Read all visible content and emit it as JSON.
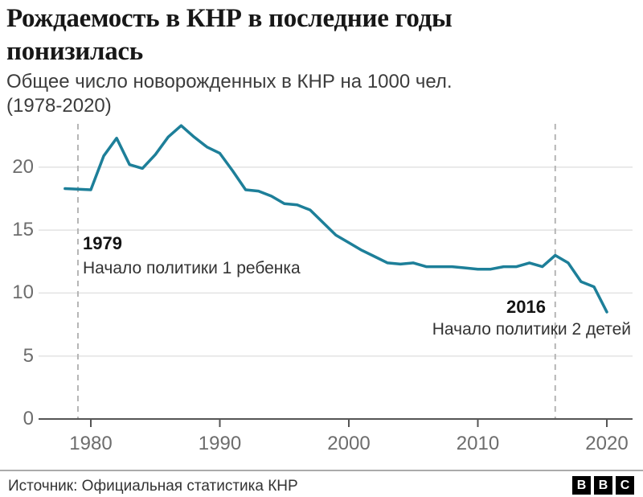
{
  "header": {
    "title_lines": [
      "Рождаемость в КНР в последние годы",
      "понизилась"
    ],
    "subtitle_lines": [
      "Общее число новорожденных в КНР на 1000 чел.",
      "(1978-2020)"
    ]
  },
  "chart_data": {
    "type": "line",
    "title": "Рождаемость в КНР в последние годы понизилась",
    "subtitle": "Общее число новорожденных в КНР на 1000 чел. (1978-2020)",
    "xlabel": "",
    "ylabel": "",
    "x": [
      1978,
      1979,
      1980,
      1981,
      1982,
      1983,
      1984,
      1985,
      1986,
      1987,
      1988,
      1989,
      1990,
      1991,
      1992,
      1993,
      1994,
      1995,
      1996,
      1997,
      1998,
      1999,
      2000,
      2001,
      2002,
      2003,
      2004,
      2005,
      2006,
      2007,
      2008,
      2009,
      2010,
      2011,
      2012,
      2013,
      2014,
      2015,
      2016,
      2017,
      2018,
      2019,
      2020
    ],
    "values": [
      18.3,
      18.25,
      18.2,
      20.9,
      22.3,
      20.2,
      19.9,
      21.0,
      22.4,
      23.3,
      22.4,
      21.6,
      21.1,
      19.7,
      18.2,
      18.1,
      17.7,
      17.1,
      17.0,
      16.6,
      15.6,
      14.6,
      14.0,
      13.4,
      12.9,
      12.4,
      12.3,
      12.4,
      12.1,
      12.1,
      12.1,
      12.0,
      11.9,
      11.9,
      12.1,
      12.1,
      12.4,
      12.1,
      13.0,
      12.4,
      10.9,
      10.5,
      8.5
    ],
    "ylim": [
      0,
      23.5
    ],
    "xlim": [
      1977.5,
      2021
    ],
    "yticks": [
      0,
      5,
      10,
      15,
      20
    ],
    "xticks": [
      1980,
      1990,
      2000,
      2010,
      2020
    ],
    "grid": true,
    "legend": false,
    "annotations": [
      {
        "year": 1979,
        "label": "1979",
        "text": "Начало политики 1 ребенка"
      },
      {
        "year": 2016,
        "label": "2016",
        "text": "Начало политики 2 детей"
      }
    ],
    "colors": {
      "line": "#1d7f99",
      "dashed_line": "#b5b5b5",
      "grid_line": "#e3e3e3",
      "axis_line": "#555555"
    }
  },
  "footer": {
    "source": "Источник: Официальная статистика КНР",
    "logo_letters": [
      "B",
      "B",
      "C"
    ]
  }
}
